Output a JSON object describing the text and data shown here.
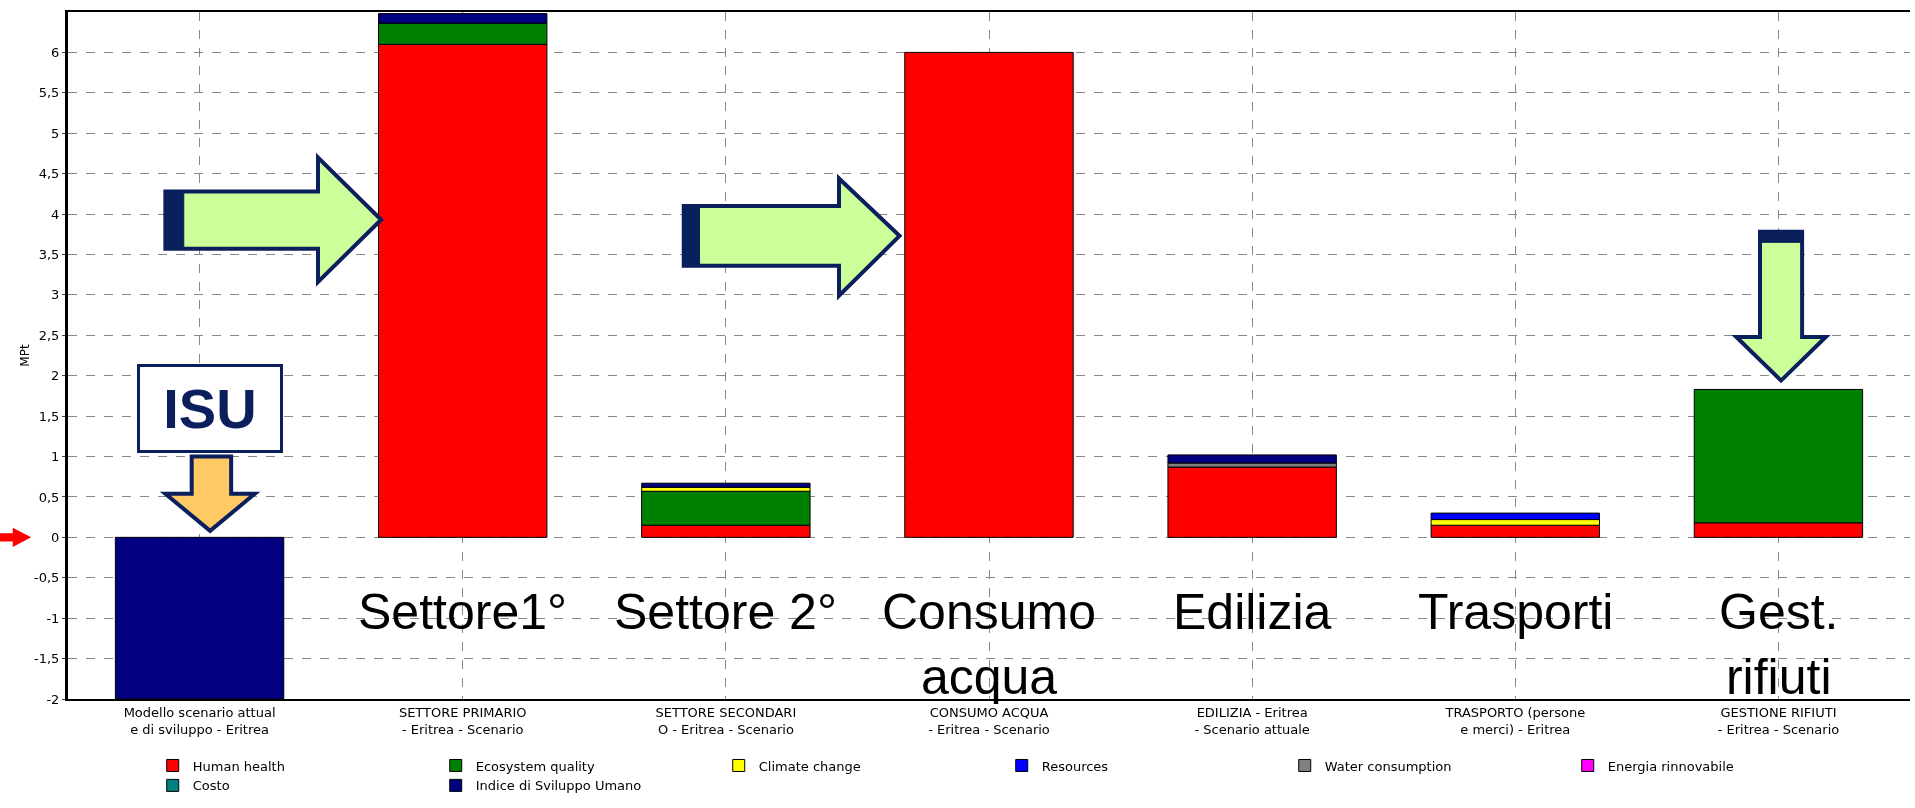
{
  "chart_data": {
    "type": "bar",
    "stacked": true,
    "ylabel": "MPt",
    "categories": [
      "Modello scenario attual\ne di sviluppo - Eritrea",
      "SETTORE PRIMARIO\n- Eritrea - Scenario",
      "SETTORE SECONDARI\nO - Eritrea - Scenario",
      "CONSUMO ACQUA\n- Eritrea - Scenario",
      "EDILIZIA - Eritrea\n- Scenario attuale",
      "TRASPORTO (persone\ne merci) - Eritrea",
      "GESTIONE RIFIUTI\n- Eritrea - Scenario"
    ],
    "series": [
      {
        "name": "Human health",
        "color": "#ff0000",
        "values": [
          null,
          6.1,
          0.15,
          6.0,
          0.87,
          0.15,
          0.18
        ]
      },
      {
        "name": "Ecosystem quality",
        "color": "#008000",
        "values": [
          null,
          0.26,
          0.42,
          null,
          null,
          null,
          1.65
        ]
      },
      {
        "name": "Climate change",
        "color": "#ffff00",
        "values": [
          null,
          null,
          0.05,
          null,
          null,
          0.07,
          null
        ]
      },
      {
        "name": "Resources",
        "color": "#0000ff",
        "values": [
          null,
          null,
          null,
          null,
          null,
          0.08,
          null
        ]
      },
      {
        "name": "Water consumption",
        "color": "#808080",
        "values": [
          null,
          null,
          null,
          null,
          0.05,
          null,
          null
        ]
      },
      {
        "name": "Energia rinnovabile",
        "color": "#ff00ff",
        "values": [
          null,
          null,
          null,
          null,
          null,
          null,
          null
        ]
      },
      {
        "name": "Costo",
        "color": "#008080",
        "values": [
          null,
          null,
          null,
          null,
          null,
          null,
          null
        ]
      },
      {
        "name": "Indice di Sviluppo Umano",
        "color": "#000080",
        "values": [
          -2,
          0.12,
          0.05,
          null,
          0.1,
          null,
          null
        ]
      }
    ],
    "ylim": [
      -2,
      6.5
    ],
    "yticks": [
      -2,
      {
        "value": -1.5,
        "label": "-1,5"
      },
      -1,
      {
        "value": -0.5,
        "label": "-0,5"
      },
      0,
      {
        "value": 0.5,
        "label": "0,5"
      },
      1,
      {
        "value": 1.5,
        "label": "1,5"
      },
      2,
      {
        "value": 2.5,
        "label": "2,5"
      },
      3,
      {
        "value": 3.5,
        "label": "3,5"
      },
      4,
      {
        "value": 4.5,
        "label": "4,5"
      },
      5,
      {
        "value": 5.5,
        "label": "5,5"
      },
      6
    ],
    "grid": true,
    "legend": "bottom",
    "annotations": [
      "ISU",
      "Settore1°",
      "Settore 2°",
      "Consumo\nacqua",
      "Edilizia",
      "Trasporti",
      "Gest.\nrifiuti"
    ]
  }
}
